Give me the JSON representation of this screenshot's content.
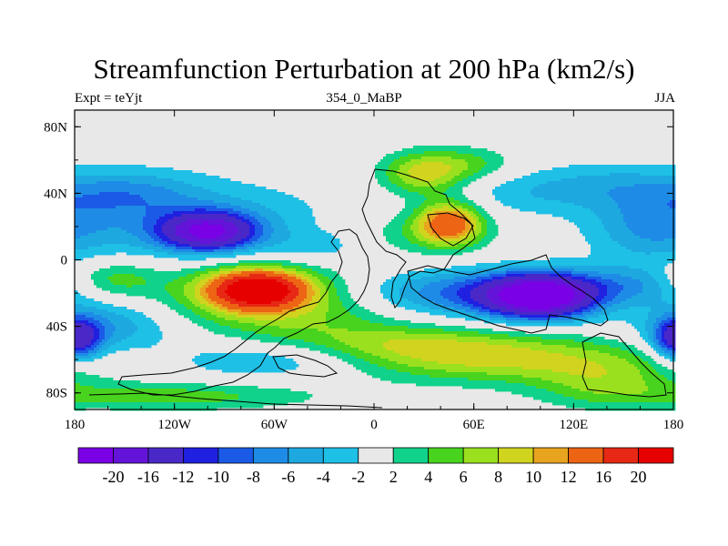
{
  "chart_data": {
    "type": "heatmap",
    "title": "Streamfunction Perturbation at 200 hPa (km2/s)",
    "left_string": "Expt = teYjt",
    "center_string": "354_0_MaBP",
    "right_string": "JJA",
    "xlim": [
      -180,
      180
    ],
    "ylim": [
      -90,
      90
    ],
    "x_ticks": [
      {
        "value": -180,
        "label": "180"
      },
      {
        "value": -120,
        "label": "120W"
      },
      {
        "value": -60,
        "label": "60W"
      },
      {
        "value": 0,
        "label": "0"
      },
      {
        "value": 60,
        "label": "60E"
      },
      {
        "value": 120,
        "label": "120E"
      },
      {
        "value": 180,
        "label": "180"
      }
    ],
    "y_ticks": [
      {
        "value": 80,
        "label": "80N"
      },
      {
        "value": 40,
        "label": "40N"
      },
      {
        "value": 0,
        "label": "0"
      },
      {
        "value": -40,
        "label": "40S"
      },
      {
        "value": -80,
        "label": "80S"
      }
    ],
    "colorbar": {
      "levels": [
        "-20",
        "-16",
        "-12",
        "-10",
        "-8",
        "-6",
        "-4",
        "-2",
        "2",
        "4",
        "6",
        "8",
        "10",
        "12",
        "16",
        "20"
      ],
      "colors": [
        "#7a00e6",
        "#6414d8",
        "#4a28c8",
        "#2020e0",
        "#1b5ae6",
        "#1e8ce6",
        "#1ea8e0",
        "#1ec0e6",
        "#e8e8e8",
        "#10d28a",
        "#48d41e",
        "#9ae01e",
        "#d0d41e",
        "#e8a41e",
        "#ec6414",
        "#e62814",
        "#e60000"
      ]
    },
    "anomalies": [
      {
        "lon": -70,
        "lat": -18,
        "value": 22,
        "slon": 20,
        "slat": 8
      },
      {
        "lon": -72,
        "lat": -18,
        "value": 6,
        "slon": 50,
        "slat": 14
      },
      {
        "lon": -45,
        "lat": -35,
        "value": 4,
        "slon": 45,
        "slat": 12
      },
      {
        "lon": 45,
        "lat": 22,
        "value": 14,
        "slon": 14,
        "slat": 9
      },
      {
        "lon": 30,
        "lat": 52,
        "value": 9,
        "slon": 18,
        "slat": 9
      },
      {
        "lon": 60,
        "lat": 58,
        "value": 4,
        "slon": 18,
        "slat": 7
      },
      {
        "lon": 20,
        "lat": 15,
        "value": 3,
        "slon": 35,
        "slat": 10
      },
      {
        "lon": 100,
        "lat": -22,
        "value": -22,
        "slon": 22,
        "slat": 9
      },
      {
        "lon": 60,
        "lat": -20,
        "value": -9,
        "slon": 50,
        "slat": 10
      },
      {
        "lon": -100,
        "lat": 17,
        "value": -18,
        "slon": 20,
        "slat": 8
      },
      {
        "lon": -110,
        "lat": 22,
        "value": -5,
        "slon": 60,
        "slat": 18
      },
      {
        "lon": -178,
        "lat": -48,
        "value": -13,
        "slon": 10,
        "slat": 9
      },
      {
        "lon": -150,
        "lat": 40,
        "value": -5,
        "slon": 30,
        "slat": 10
      },
      {
        "lon": 165,
        "lat": 20,
        "value": -5,
        "slon": 25,
        "slat": 15
      },
      {
        "lon": 140,
        "lat": 45,
        "value": -3.5,
        "slon": 30,
        "slat": 10
      },
      {
        "lon": 90,
        "lat": 40,
        "value": -3,
        "slon": 30,
        "slat": 10
      },
      {
        "lon": -160,
        "lat": -40,
        "value": -6,
        "slon": 30,
        "slat": 12
      },
      {
        "lon": -60,
        "lat": -60,
        "value": -5,
        "slon": 40,
        "slat": 8
      },
      {
        "lon": -30,
        "lat": 8,
        "value": -3,
        "slon": 20,
        "slat": 7
      },
      {
        "lon": 80,
        "lat": -60,
        "value": 8,
        "slon": 70,
        "slat": 10
      },
      {
        "lon": 20,
        "lat": -50,
        "value": 5,
        "slon": 50,
        "slat": 8
      },
      {
        "lon": 140,
        "lat": -75,
        "value": 5,
        "slon": 30,
        "slat": 10
      },
      {
        "lon": -120,
        "lat": -82,
        "value": 5,
        "slon": 60,
        "slat": 6
      },
      {
        "lon": -160,
        "lat": -12,
        "value": 6,
        "slon": 20,
        "slat": 8
      },
      {
        "lon": 160,
        "lat": -15,
        "value": -5,
        "slon": 30,
        "slat": 8
      }
    ]
  }
}
